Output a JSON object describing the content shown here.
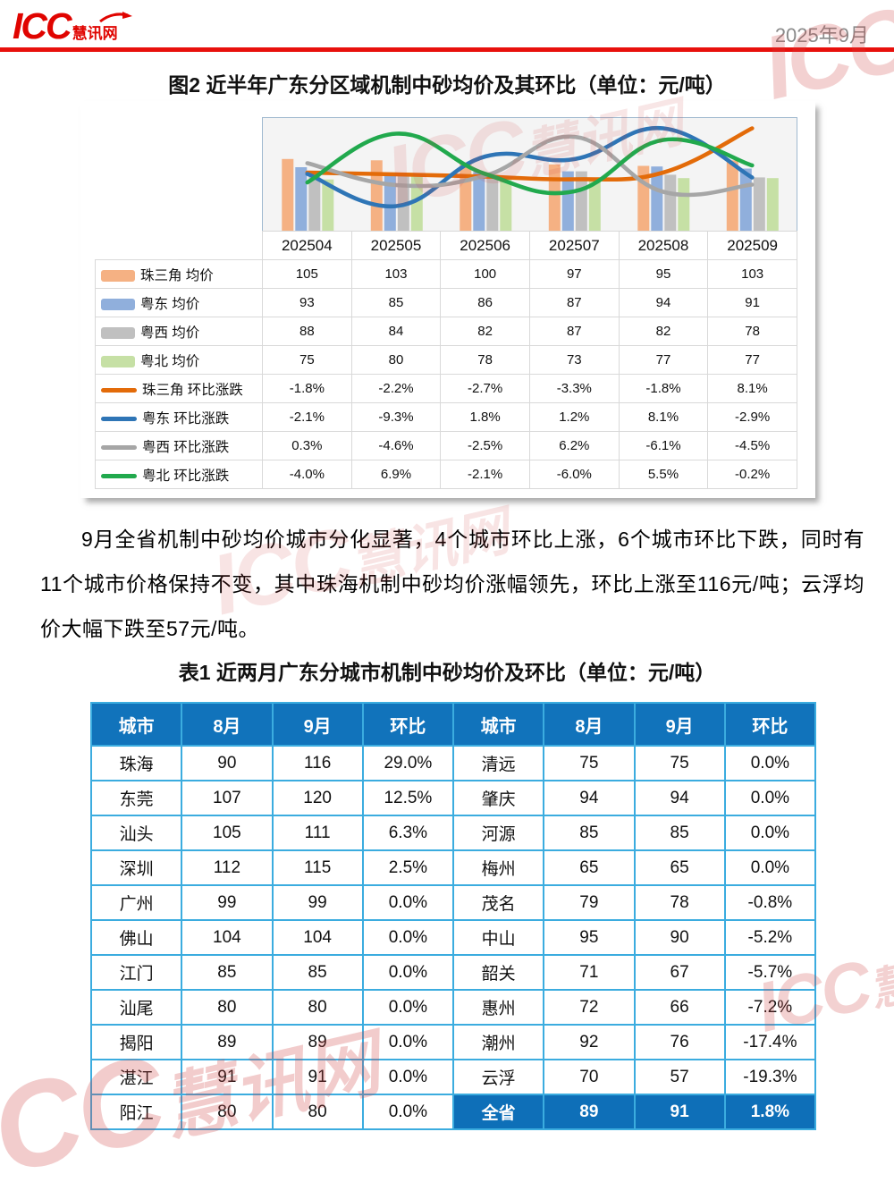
{
  "header": {
    "logo_icc": "ICC",
    "logo_suffix": "慧讯网",
    "date": "2025年9月"
  },
  "figure2": {
    "title": "图2 近半年广东分区域机制中砂均价及其环比（单位：元/吨）"
  },
  "chart_data": {
    "type": "combo-bar-line",
    "categories": [
      "202504",
      "202505",
      "202506",
      "202507",
      "202508",
      "202509"
    ],
    "bar_series": [
      {
        "name": "珠三角 均价",
        "values": [
          105,
          103,
          100,
          97,
          95,
          103
        ],
        "color": "#F5B183"
      },
      {
        "name": "粤东 均价",
        "values": [
          93,
          85,
          86,
          87,
          94,
          91
        ],
        "color": "#90AFDC"
      },
      {
        "name": "粤西 均价",
        "values": [
          88,
          84,
          82,
          87,
          82,
          78
        ],
        "color": "#C0C0C0"
      },
      {
        "name": "粤北 均价",
        "values": [
          75,
          80,
          78,
          73,
          77,
          77
        ],
        "color": "#C6E0A5"
      }
    ],
    "line_series": [
      {
        "name": "珠三角 环比涨跌",
        "values": [
          -1.8,
          -2.2,
          -2.7,
          -3.3,
          -1.8,
          8.1
        ],
        "color": "#E36B09"
      },
      {
        "name": "粤东 环比涨跌",
        "values": [
          -2.1,
          -9.3,
          1.8,
          1.2,
          8.1,
          -2.9
        ],
        "color": "#2E75B6"
      },
      {
        "name": "粤西 环比涨跌",
        "values": [
          0.3,
          -4.6,
          -2.5,
          6.2,
          -6.1,
          -4.5
        ],
        "color": "#A6A6A6"
      },
      {
        "name": "粤北 环比涨跌",
        "values": [
          -4.0,
          6.9,
          -2.1,
          -6.0,
          5.5,
          -0.2
        ],
        "color": "#21A94D"
      }
    ],
    "bar_axis": {
      "min": 0,
      "max": 165
    },
    "line_axis": {
      "top_pct": 10.4,
      "bottom_pct": -14.8
    },
    "value_unit": "元/吨",
    "pct_unit": "%",
    "grid": false,
    "legend_position": "left-table"
  },
  "paragraph": {
    "text": "9月全省机制中砂均价城市分化显著，4个城市环比上涨，6个城市环比下跌，同时有11个城市价格保持不变，其中珠海机制中砂均价涨幅领先，环比上涨至116元/吨；云浮均价大幅下跌至57元/吨。"
  },
  "table1": {
    "title": "表1 近两月广东分城市机制中砂均价及环比（单位：元/吨）",
    "headers": [
      "城市",
      "8月",
      "9月",
      "环比",
      "城市",
      "8月",
      "9月",
      "环比"
    ],
    "rows": [
      [
        "珠海",
        "90",
        "116",
        "29.0%",
        "清远",
        "75",
        "75",
        "0.0%"
      ],
      [
        "东莞",
        "107",
        "120",
        "12.5%",
        "肇庆",
        "94",
        "94",
        "0.0%"
      ],
      [
        "汕头",
        "105",
        "111",
        "6.3%",
        "河源",
        "85",
        "85",
        "0.0%"
      ],
      [
        "深圳",
        "112",
        "115",
        "2.5%",
        "梅州",
        "65",
        "65",
        "0.0%"
      ],
      [
        "广州",
        "99",
        "99",
        "0.0%",
        "茂名",
        "79",
        "78",
        "-0.8%"
      ],
      [
        "佛山",
        "104",
        "104",
        "0.0%",
        "中山",
        "95",
        "90",
        "-5.2%"
      ],
      [
        "江门",
        "85",
        "85",
        "0.0%",
        "韶关",
        "71",
        "67",
        "-5.7%"
      ],
      [
        "汕尾",
        "80",
        "80",
        "0.0%",
        "惠州",
        "72",
        "66",
        "-7.2%"
      ],
      [
        "揭阳",
        "89",
        "89",
        "0.0%",
        "潮州",
        "92",
        "76",
        "-17.4%"
      ],
      [
        "湛江",
        "91",
        "91",
        "0.0%",
        "云浮",
        "70",
        "57",
        "-19.3%"
      ],
      [
        "阳江",
        "80",
        "80",
        "0.0%",
        "全省",
        "89",
        "91",
        "1.8%"
      ]
    ],
    "highlight_row": 10,
    "highlight_cols_from": 4
  },
  "watermark": {
    "big": "ICC",
    "small": "慧讯网"
  },
  "colors": {
    "brand_red": "#e00400",
    "divider_red": "#e8100c",
    "table_header_bg": "#1173bb",
    "table_border": "#3bacdf",
    "table_highlight_bg": "#0e6fb8",
    "plot_bg": "#f4f4f4",
    "date_gray": "#8a8a8a"
  }
}
